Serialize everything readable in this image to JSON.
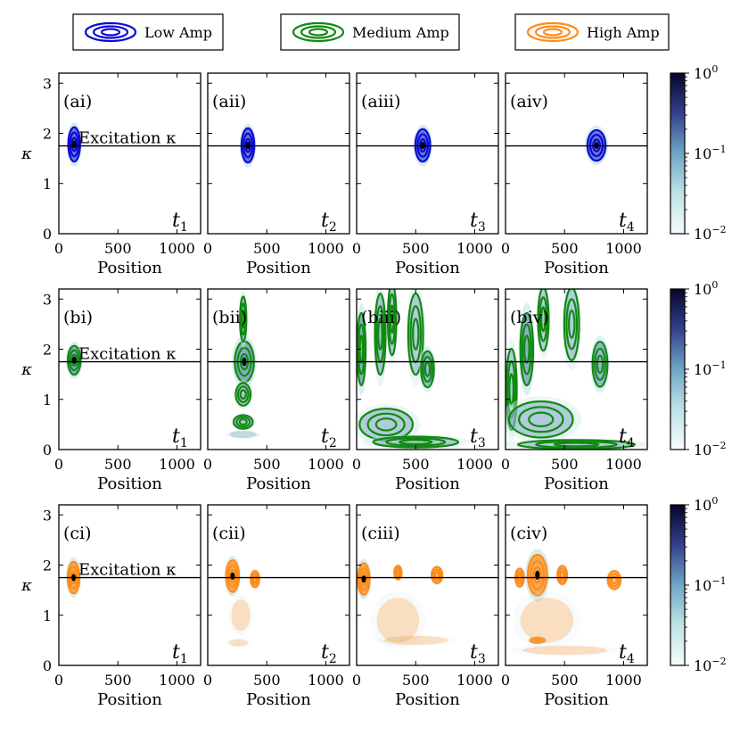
{
  "chart_data": {
    "type": "heatmap",
    "title": "",
    "xlabel": "Position",
    "ylabel": "κ",
    "xlim": [
      0,
      1200
    ],
    "ylim": [
      0,
      3.2
    ],
    "x_ticks": [
      "0",
      "500",
      "1000"
    ],
    "x_tick_values": [
      0,
      500,
      1000
    ],
    "y_ticks": [
      "0",
      "1",
      "2",
      "3"
    ],
    "y_tick_values": [
      0,
      1,
      2,
      3
    ],
    "excitation_kappa": 1.75,
    "excitation_label": "Excitation κ",
    "colorbar": {
      "scale": "log",
      "range": [
        0.01,
        1
      ],
      "tick_values": [
        1,
        0.1,
        0.01
      ],
      "tick_bases": [
        "10",
        "10",
        "10"
      ],
      "tick_exponents": [
        "0",
        "−1",
        "−2"
      ]
    },
    "legend": [
      {
        "name": "Low Amp",
        "color": "#0a0ad6"
      },
      {
        "name": "Medium Amp",
        "color": "#118a11"
      },
      {
        "name": "High Amp",
        "color": "#ff8c1a"
      }
    ],
    "time_labels": [
      {
        "base": "t",
        "sub": "1"
      },
      {
        "base": "t",
        "sub": "2"
      },
      {
        "base": "t",
        "sub": "3"
      },
      {
        "base": "t",
        "sub": "4"
      }
    ],
    "rows": [
      {
        "series": "Low Amp",
        "color": "#0a0ad6",
        "fill": "#3848c8",
        "panels": [
          {
            "label": "(ai)",
            "blobs": [
              {
                "x": 130,
                "k": 1.78,
                "rx": 55,
                "rk": 0.38,
                "w": 1.0
              }
            ]
          },
          {
            "label": "(aii)",
            "blobs": [
              {
                "x": 340,
                "k": 1.76,
                "rx": 60,
                "rk": 0.38,
                "w": 1.0
              }
            ]
          },
          {
            "label": "(aiii)",
            "blobs": [
              {
                "x": 560,
                "k": 1.76,
                "rx": 70,
                "rk": 0.36,
                "w": 1.0
              }
            ]
          },
          {
            "label": "(aiv)",
            "blobs": [
              {
                "x": 770,
                "k": 1.76,
                "rx": 85,
                "rk": 0.34,
                "w": 1.0
              }
            ]
          }
        ]
      },
      {
        "series": "Medium Amp",
        "color": "#118a11",
        "fill": "#5f8fb0",
        "panels": [
          {
            "label": "(bi)",
            "blobs": [
              {
                "x": 130,
                "k": 1.78,
                "rx": 60,
                "rk": 0.32,
                "w": 1.0
              }
            ]
          },
          {
            "label": "(bii)",
            "blobs": [
              {
                "x": 310,
                "k": 1.75,
                "rx": 90,
                "rk": 0.45,
                "w": 1.0
              },
              {
                "x": 300,
                "k": 2.6,
                "rx": 30,
                "rk": 0.5,
                "w": 0.6
              },
              {
                "x": 300,
                "k": 1.1,
                "rx": 70,
                "rk": 0.25,
                "w": 0.6
              },
              {
                "x": 300,
                "k": 0.55,
                "rx": 90,
                "rk": 0.15,
                "w": 0.5
              },
              {
                "x": 300,
                "k": 0.3,
                "rx": 130,
                "rk": 0.08,
                "w": 0.3
              }
            ]
          },
          {
            "label": "(biii)",
            "blobs": [
              {
                "x": 40,
                "k": 2.0,
                "rx": 40,
                "rk": 0.8,
                "w": 0.9
              },
              {
                "x": 200,
                "k": 2.3,
                "rx": 50,
                "rk": 0.9,
                "w": 0.6
              },
              {
                "x": 300,
                "k": 2.6,
                "rx": 40,
                "rk": 0.8,
                "w": 0.5
              },
              {
                "x": 500,
                "k": 2.3,
                "rx": 70,
                "rk": 0.9,
                "w": 0.5
              },
              {
                "x": 600,
                "k": 1.6,
                "rx": 60,
                "rk": 0.4,
                "w": 0.8
              },
              {
                "x": 250,
                "k": 0.5,
                "rx": 250,
                "rk": 0.35,
                "w": 0.5
              },
              {
                "x": 500,
                "k": 0.15,
                "rx": 400,
                "rk": 0.12,
                "w": 0.5
              }
            ]
          },
          {
            "label": "(biv)",
            "blobs": [
              {
                "x": 50,
                "k": 1.2,
                "rx": 50,
                "rk": 0.9,
                "w": 0.5
              },
              {
                "x": 180,
                "k": 2.0,
                "rx": 60,
                "rk": 0.8,
                "w": 0.9
              },
              {
                "x": 320,
                "k": 2.6,
                "rx": 50,
                "rk": 0.7,
                "w": 0.5
              },
              {
                "x": 560,
                "k": 2.5,
                "rx": 70,
                "rk": 0.8,
                "w": 0.5
              },
              {
                "x": 800,
                "k": 1.7,
                "rx": 70,
                "rk": 0.5,
                "w": 0.8
              },
              {
                "x": 300,
                "k": 0.6,
                "rx": 300,
                "rk": 0.4,
                "w": 0.5
              },
              {
                "x": 600,
                "k": 0.1,
                "rx": 550,
                "rk": 0.1,
                "w": 0.5
              }
            ]
          }
        ]
      },
      {
        "series": "High Amp",
        "color": "#ff8c1a",
        "fill": "#ff8c1a",
        "panels": [
          {
            "label": "(ci)",
            "blobs": [
              {
                "x": 125,
                "k": 1.75,
                "rx": 55,
                "rk": 0.35,
                "w": 1.0
              }
            ]
          },
          {
            "label": "(cii)",
            "blobs": [
              {
                "x": 210,
                "k": 1.78,
                "rx": 60,
                "rk": 0.35,
                "w": 1.0
              },
              {
                "x": 400,
                "k": 1.72,
                "rx": 40,
                "rk": 0.18,
                "w": 0.5
              },
              {
                "x": 280,
                "k": 1.0,
                "rx": 90,
                "rk": 0.35,
                "w": 0.2
              },
              {
                "x": 260,
                "k": 0.45,
                "rx": 90,
                "rk": 0.08,
                "w": 0.2
              }
            ]
          },
          {
            "label": "(ciii)",
            "blobs": [
              {
                "x": 60,
                "k": 1.72,
                "rx": 55,
                "rk": 0.35,
                "w": 1.0
              },
              {
                "x": 350,
                "k": 1.85,
                "rx": 35,
                "rk": 0.15,
                "w": 0.5
              },
              {
                "x": 680,
                "k": 1.8,
                "rx": 50,
                "rk": 0.18,
                "w": 0.5
              },
              {
                "x": 350,
                "k": 0.9,
                "rx": 200,
                "rk": 0.5,
                "w": 0.2
              },
              {
                "x": 500,
                "k": 0.5,
                "rx": 300,
                "rk": 0.1,
                "w": 0.2
              }
            ]
          },
          {
            "label": "(civ)",
            "blobs": [
              {
                "x": 270,
                "k": 1.8,
                "rx": 90,
                "rk": 0.45,
                "w": 1.0
              },
              {
                "x": 120,
                "k": 1.75,
                "rx": 40,
                "rk": 0.2,
                "w": 0.5
              },
              {
                "x": 480,
                "k": 1.8,
                "rx": 45,
                "rk": 0.2,
                "w": 0.5
              },
              {
                "x": 920,
                "k": 1.7,
                "rx": 60,
                "rk": 0.2,
                "w": 0.5
              },
              {
                "x": 270,
                "k": 0.5,
                "rx": 70,
                "rk": 0.06,
                "w": 0.5
              },
              {
                "x": 350,
                "k": 0.9,
                "rx": 250,
                "rk": 0.5,
                "w": 0.2
              },
              {
                "x": 500,
                "k": 0.3,
                "rx": 400,
                "rk": 0.1,
                "w": 0.2
              }
            ]
          }
        ]
      }
    ]
  }
}
